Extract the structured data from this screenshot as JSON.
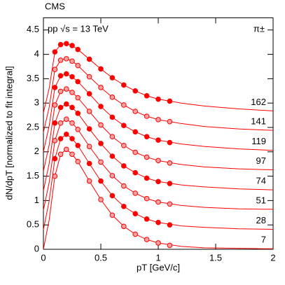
{
  "chart_data": {
    "type": "line",
    "title": "CMS",
    "annotation": "pp √s = 13 TeV",
    "particle": "π±",
    "x_label": "pT [GeV/c]",
    "y_label": "dN/dpT [normalized to fit integral]",
    "xlim": [
      0,
      2
    ],
    "xticks": [
      0,
      0.5,
      1,
      1.5,
      2
    ],
    "ylim": [
      0,
      4.75
    ],
    "yticks": [
      0,
      0.5,
      1,
      1.5,
      2,
      2.5,
      3,
      3.5,
      4,
      4.5
    ],
    "x": [
      0.1,
      0.15,
      0.2,
      0.25,
      0.3,
      0.4,
      0.5,
      0.6,
      0.7,
      0.8,
      0.9,
      1.0,
      1.1
    ],
    "fit_x": [
      0,
      0.05,
      0.1,
      0.15,
      0.2,
      0.25,
      0.3,
      0.4,
      0.5,
      0.6,
      0.7,
      0.8,
      0.9,
      1.0,
      1.2,
      1.4,
      1.7,
      2
    ],
    "series": [
      {
        "name": "7",
        "color": "#ff0000",
        "filled": false,
        "values": [
          1.5,
          1.95,
          2.05,
          1.95,
          1.8,
          1.4,
          1.02,
          0.7,
          0.47,
          0.31,
          0.2,
          0.13,
          0.08
        ],
        "fit": [
          0,
          0.6,
          1.5,
          1.95,
          2.05,
          1.95,
          1.8,
          1.4,
          1.02,
          0.7,
          0.47,
          0.31,
          0.2,
          0.13,
          0.06,
          0.03,
          0.02,
          0.01
        ]
      },
      {
        "name": "28",
        "color": "#ff0000",
        "filled": true,
        "values": [
          1.86,
          2.27,
          2.36,
          2.27,
          2.13,
          1.76,
          1.4,
          1.1,
          0.88,
          0.73,
          0.62,
          0.55,
          0.5
        ],
        "fit": [
          0.4,
          0.99,
          1.86,
          2.27,
          2.36,
          2.27,
          2.13,
          1.76,
          1.4,
          1.1,
          0.88,
          0.73,
          0.62,
          0.55,
          0.48,
          0.45,
          0.42,
          0.41
        ]
      },
      {
        "name": "51",
        "color": "#ff0000",
        "filled": false,
        "values": [
          2.23,
          2.59,
          2.67,
          2.59,
          2.46,
          2.11,
          1.79,
          1.51,
          1.3,
          1.15,
          1.04,
          0.97,
          0.93
        ],
        "fit": [
          0.8,
          1.37,
          2.23,
          2.59,
          2.67,
          2.59,
          2.46,
          2.11,
          1.79,
          1.51,
          1.3,
          1.15,
          1.04,
          0.97,
          0.9,
          0.86,
          0.83,
          0.82
        ]
      },
      {
        "name": "74",
        "color": "#ff0000",
        "filled": true,
        "values": [
          2.59,
          2.91,
          2.98,
          2.91,
          2.79,
          2.47,
          2.17,
          1.91,
          1.71,
          1.57,
          1.46,
          1.39,
          1.35
        ],
        "fit": [
          1.2,
          1.76,
          2.59,
          2.91,
          2.98,
          2.91,
          2.79,
          2.47,
          2.17,
          1.91,
          1.71,
          1.57,
          1.46,
          1.39,
          1.32,
          1.28,
          1.24,
          1.22
        ]
      },
      {
        "name": "97",
        "color": "#ff0000",
        "filled": false,
        "values": [
          2.96,
          3.24,
          3.29,
          3.22,
          3.11,
          2.83,
          2.55,
          2.31,
          2.13,
          1.99,
          1.89,
          1.82,
          1.77
        ],
        "fit": [
          1.6,
          2.14,
          2.96,
          3.24,
          3.29,
          3.22,
          3.11,
          2.83,
          2.55,
          2.31,
          2.13,
          1.99,
          1.89,
          1.82,
          1.74,
          1.69,
          1.65,
          1.63
        ]
      },
      {
        "name": "119",
        "color": "#ff0000",
        "filled": true,
        "values": [
          3.32,
          3.56,
          3.6,
          3.54,
          3.44,
          3.19,
          2.93,
          2.71,
          2.54,
          2.41,
          2.31,
          2.24,
          2.19
        ],
        "fit": [
          2,
          2.53,
          3.32,
          3.56,
          3.6,
          3.54,
          3.44,
          3.19,
          2.93,
          2.71,
          2.54,
          2.41,
          2.31,
          2.24,
          2.16,
          2.11,
          2.06,
          2.03
        ]
      },
      {
        "name": "141",
        "color": "#ff0000",
        "filled": false,
        "values": [
          3.69,
          3.88,
          3.91,
          3.86,
          3.77,
          3.54,
          3.32,
          3.12,
          2.96,
          2.83,
          2.73,
          2.66,
          2.62
        ],
        "fit": [
          2.4,
          2.91,
          3.69,
          3.88,
          3.91,
          3.86,
          3.77,
          3.54,
          3.32,
          3.12,
          2.96,
          2.83,
          2.73,
          2.66,
          2.58,
          2.52,
          2.47,
          2.44
        ]
      },
      {
        "name": "162",
        "color": "#ff0000",
        "filled": true,
        "values": [
          4.05,
          4.2,
          4.22,
          4.18,
          4.1,
          3.9,
          3.7,
          3.52,
          3.37,
          3.25,
          3.15,
          3.08,
          3.04
        ],
        "fit": [
          2.8,
          3.3,
          4.05,
          4.2,
          4.22,
          4.18,
          4.1,
          3.9,
          3.7,
          3.52,
          3.37,
          3.25,
          3.15,
          3.08,
          3.0,
          2.94,
          2.88,
          2.84
        ]
      }
    ]
  }
}
